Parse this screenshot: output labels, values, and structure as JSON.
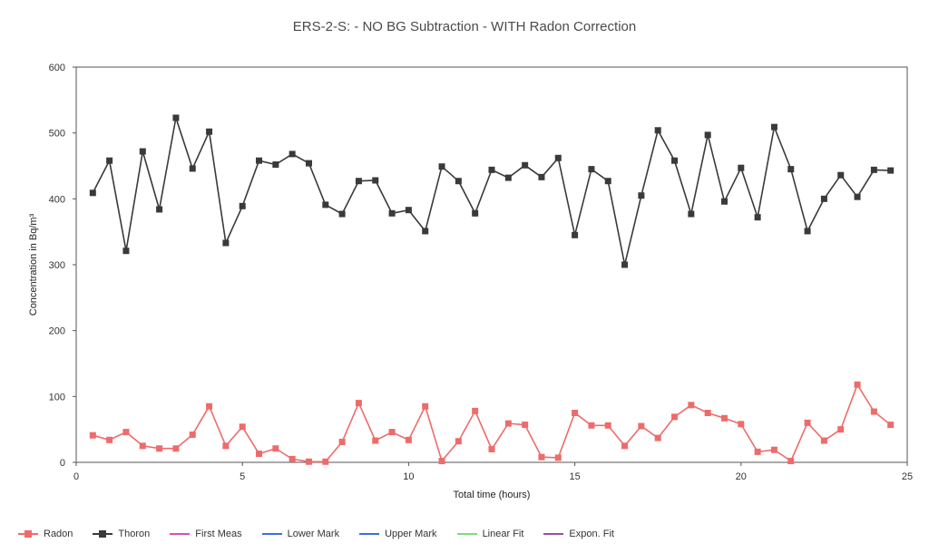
{
  "chart_data": {
    "type": "line",
    "title": "ERS-2-S:  - NO BG Subtraction - WITH Radon Correction",
    "xlabel": "Total time (hours)",
    "ylabel": "Concentration in Bq/m³",
    "xlim": [
      0,
      25
    ],
    "ylim": [
      0,
      600
    ],
    "xticks": [
      0,
      5,
      10,
      15,
      20,
      25
    ],
    "yticks": [
      0,
      100,
      200,
      300,
      400,
      500,
      600
    ],
    "grid": false,
    "legend_position": "bottom",
    "x": [
      0.5,
      1,
      1.5,
      2,
      2.5,
      3,
      3.5,
      4,
      4.5,
      5,
      5.5,
      6,
      6.5,
      7,
      7.5,
      8,
      8.5,
      9,
      9.5,
      10,
      10.5,
      11,
      11.5,
      12,
      12.5,
      13,
      13.5,
      14,
      14.5,
      15,
      15.5,
      16,
      16.5,
      17,
      17.5,
      18,
      18.5,
      19,
      19.5,
      20,
      20.5,
      21,
      21.5,
      22,
      22.5,
      23,
      23.5,
      24,
      24.5
    ],
    "series": [
      {
        "name": "Radon",
        "color": "#ee6b6b",
        "marker": "square",
        "values": [
          41,
          34,
          46,
          25,
          21,
          21,
          42,
          85,
          25,
          54,
          13,
          21,
          5,
          1,
          1,
          31,
          90,
          33,
          46,
          34,
          85,
          2,
          32,
          78,
          20,
          59,
          57,
          8,
          7,
          75,
          56,
          56,
          25,
          55,
          37,
          69,
          87,
          75,
          67,
          58,
          16,
          19,
          2,
          60,
          33,
          50,
          118,
          77,
          57
        ]
      },
      {
        "name": "Thoron",
        "color": "#3a3a3a",
        "marker": "square",
        "values": [
          409,
          458,
          321,
          472,
          384,
          523,
          446,
          502,
          333,
          389,
          458,
          452,
          468,
          454,
          391,
          377,
          427,
          428,
          378,
          383,
          351,
          449,
          427,
          378,
          444,
          432,
          451,
          433,
          462,
          345,
          445,
          427,
          300,
          405,
          504,
          458,
          377,
          497,
          396,
          447,
          372,
          509,
          445,
          351,
          400,
          436,
          403,
          444,
          443
        ]
      }
    ],
    "legend": [
      {
        "name": "Radon",
        "color": "#ee6b6b",
        "marker": "square"
      },
      {
        "name": "Thoron",
        "color": "#3a3a3a",
        "marker": "square"
      },
      {
        "name": "First Meas",
        "color": "#d94fb0",
        "marker": "none"
      },
      {
        "name": "Lower Mark",
        "color": "#3b6fd8",
        "marker": "none"
      },
      {
        "name": "Upper Mark",
        "color": "#3b6fd8",
        "marker": "none"
      },
      {
        "name": "Linear Fit",
        "color": "#7fdc7f",
        "marker": "none"
      },
      {
        "name": "Expon. Fit",
        "color": "#9b4f9b",
        "marker": "none"
      }
    ]
  }
}
